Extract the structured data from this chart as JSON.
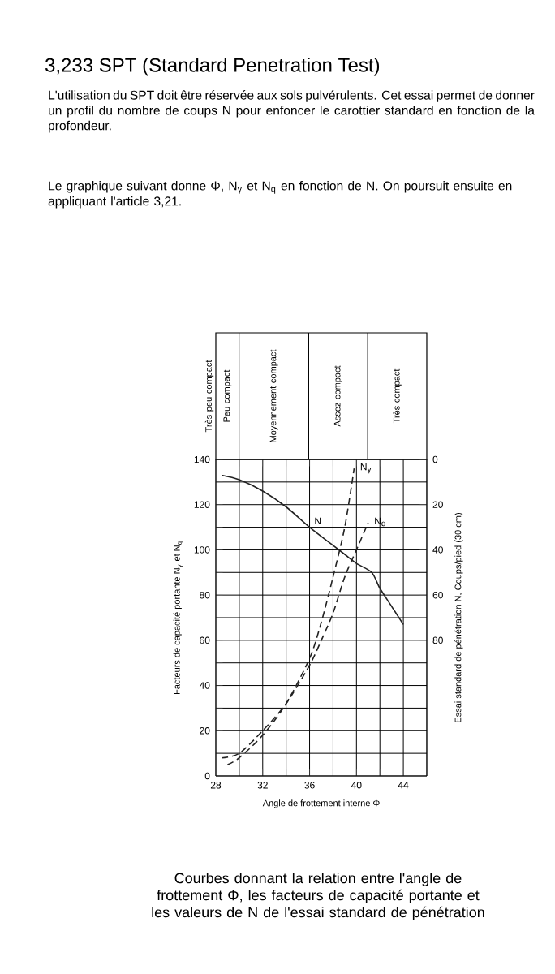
{
  "chart_data": {
    "type": "line",
    "title": "3,233 SPT (Standard Penetration Test)",
    "annotations": [
      "L'utilisation du SPT doit être réservée aux sols pulvérulents. Cet essai permet de donner un profil du nombre de coups N pour enfoncer le carottier standard en fonction de la profondeur.",
      "Le graphique suivant donne Φ, N$_{γ}$ et N$_{q}$ en fonction de N. On poursuit ensuite en appliquant l'article 3,21.",
      "Courbes donnant la relation entre l'angle de frottement Φ, les facteurs de capacité portante et les valeurs de N de l'essai standard de pénétration",
      "Très peu compact",
      "Peu compact",
      "Moyennement compact",
      "Assez compact",
      "Très compact"
    ],
    "xlabel": "Angle de frottement interne Φ",
    "ylabel": "Facteurs de capacité portante N$_{γ}$ et N$_{q}$",
    "y2label": "Essai standard de pénétration N, Coups/pied (30 cm)",
    "xlim": [
      28,
      46
    ],
    "xticks": [
      28,
      {
        "value": 30,
        "label": null
      },
      32,
      {
        "value": 34,
        "label": null
      },
      36,
      {
        "value": 38,
        "label": null
      },
      40,
      {
        "value": 42,
        "label": null
      },
      44,
      {
        "value": 46,
        "label": null
      }
    ],
    "ylim": [
      0,
      140
    ],
    "yticks": [
      0,
      {
        "value": 10,
        "label": null
      },
      20,
      {
        "value": 30,
        "label": null
      },
      40,
      {
        "value": 50,
        "label": null
      },
      60,
      {
        "value": 70,
        "label": null
      },
      80,
      {
        "value": 90,
        "label": null
      },
      100,
      {
        "value": 110,
        "label": null
      },
      120,
      {
        "value": 130,
        "label": null
      },
      140
    ],
    "y2lim": [
      140,
      0
    ],
    "y2ticks": [
      0,
      20,
      40,
      60,
      80
    ],
    "grid": true,
    "marker": "none",
    "series": [
      {
        "name": "N",
        "color": "#222222",
        "axis": "y2",
        "line_style": "solid",
        "x": [
          28.5,
          30,
          32,
          34,
          36,
          38,
          39,
          40,
          41.3,
          42,
          43,
          44
        ],
        "values": [
          7,
          9,
          14,
          21,
          30,
          38,
          42,
          46,
          50,
          57,
          65,
          73
        ]
      },
      {
        "name": "N$_{γ}$",
        "color": "#222222",
        "line_style": "dashed",
        "x": [
          29,
          30,
          32,
          34,
          36,
          37,
          38,
          39,
          39.8
        ],
        "values": [
          5,
          8,
          18,
          32,
          52,
          68,
          88,
          110,
          136
        ]
      },
      {
        "name": "N$_{q}$",
        "color": "#222222",
        "line_style": "dashed",
        "x": [
          28.5,
          30,
          32,
          34,
          36,
          37,
          38,
          39,
          40,
          41
        ],
        "values": [
          8,
          10,
          20,
          32,
          49,
          60,
          72,
          88,
          100,
          112
        ]
      }
    ]
  }
}
